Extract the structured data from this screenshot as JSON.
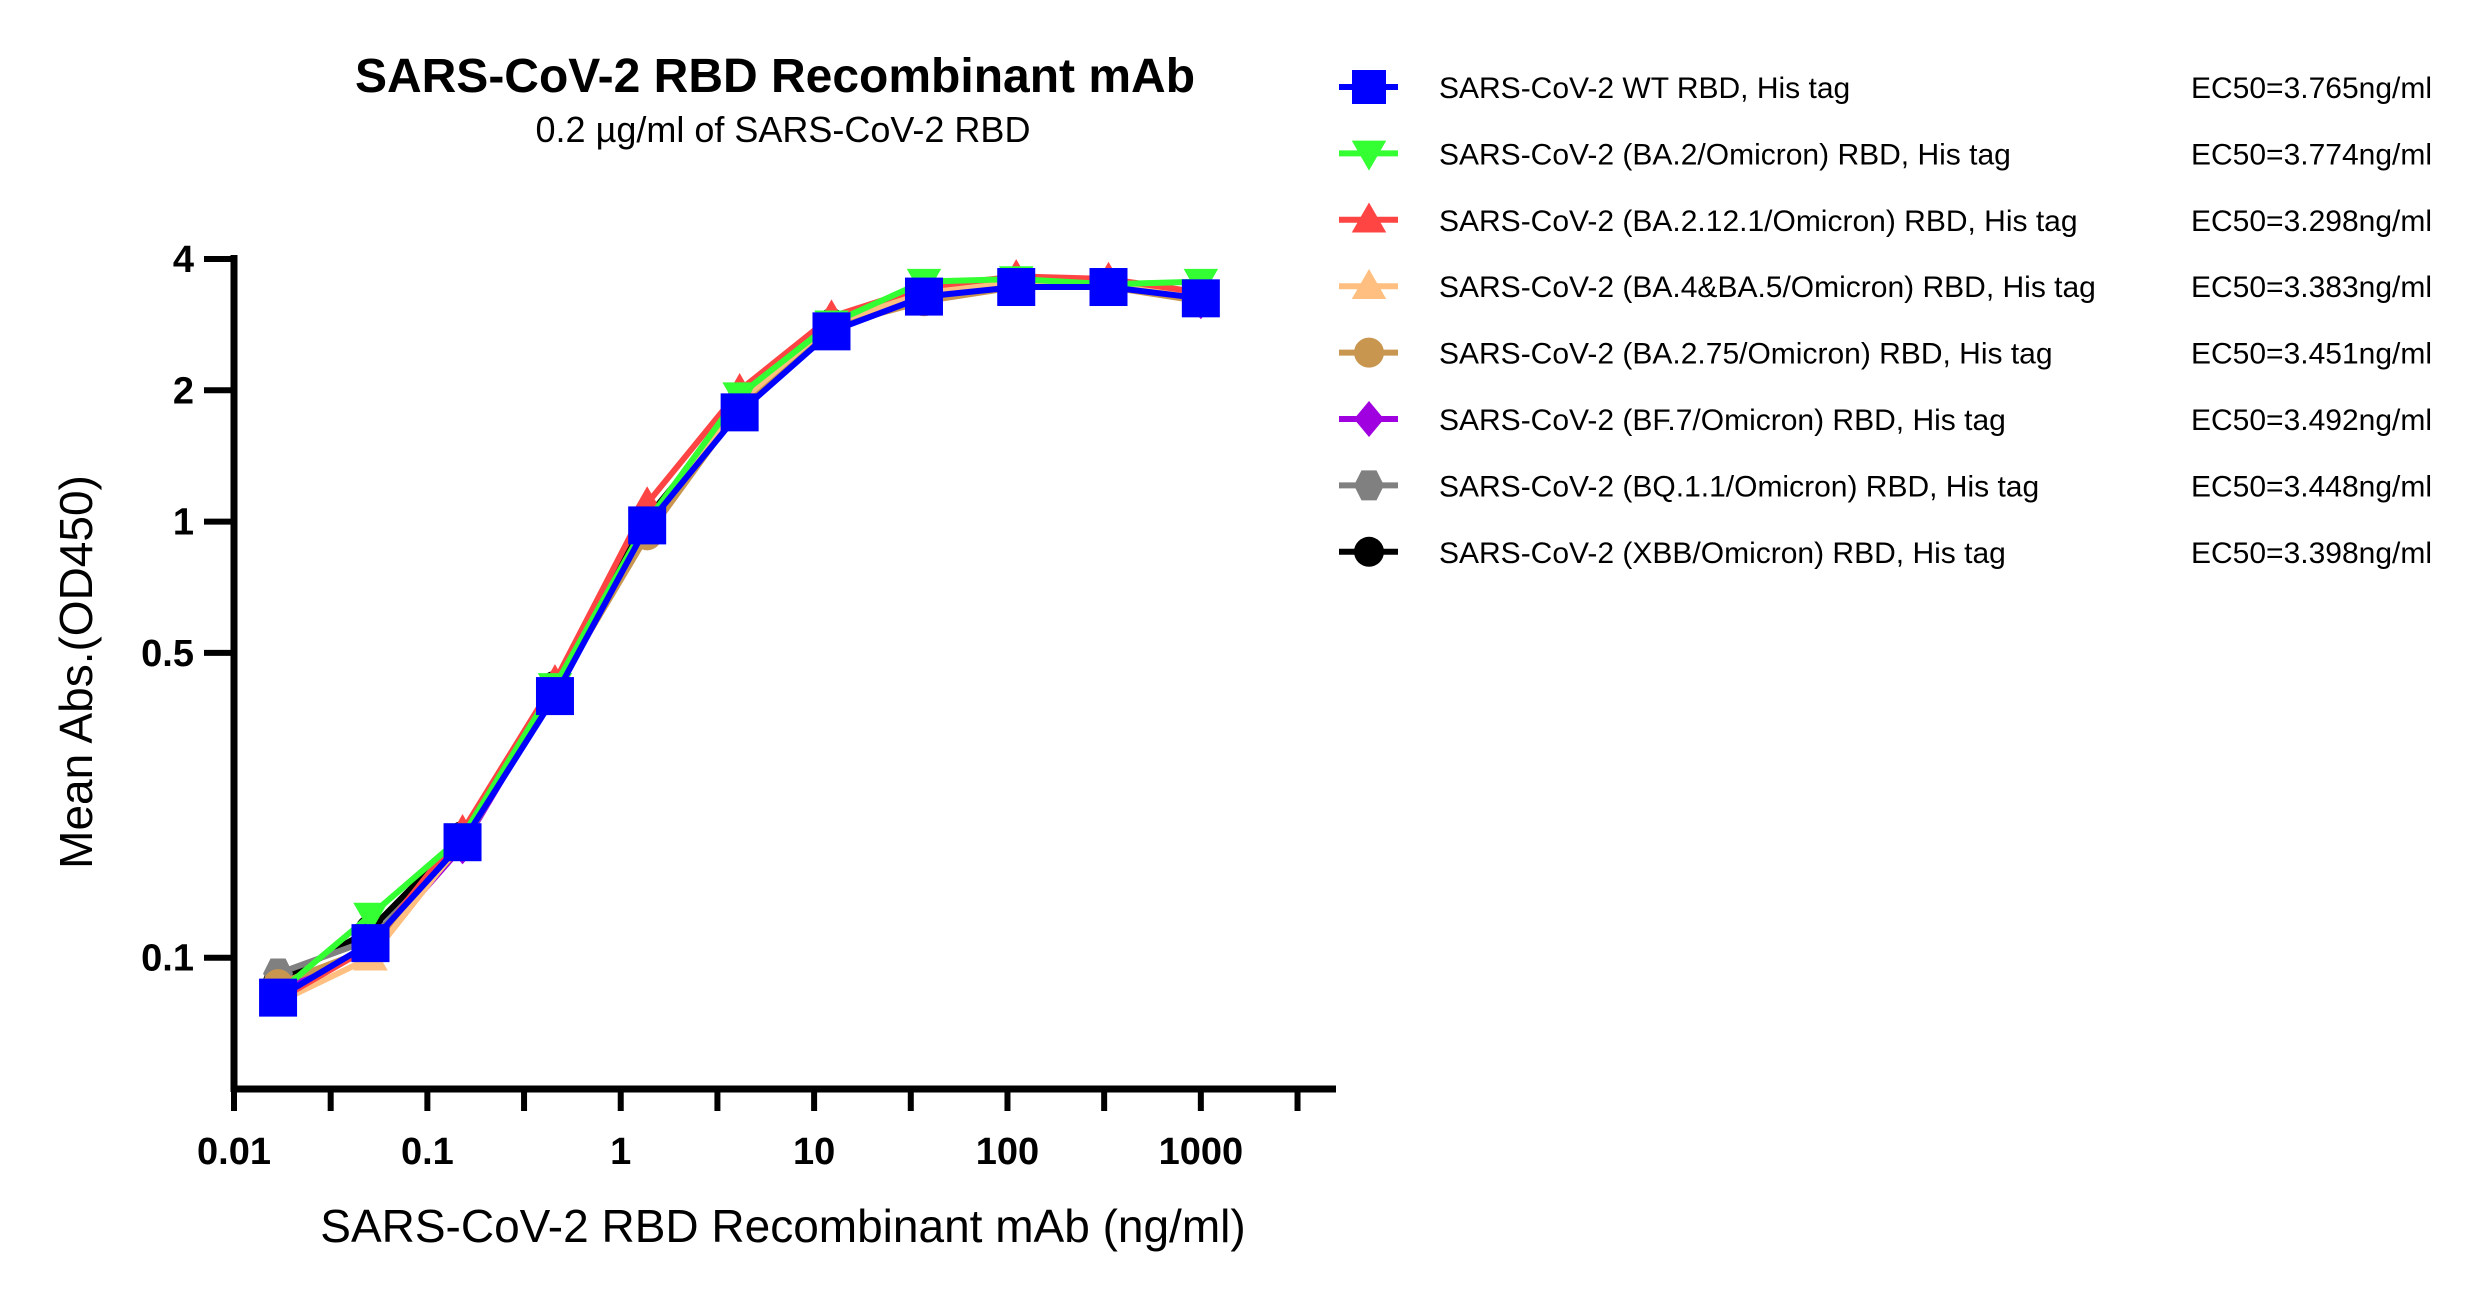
{
  "chart_data": {
    "type": "line",
    "title": "SARS-CoV-2 RBD Recombinant mAb",
    "subtitle": "0.2 µg/ml of SARS-CoV-2 RBD",
    "xlabel": "SARS-CoV-2 RBD Recombinant mAb (ng/ml)",
    "ylabel": "Mean Abs.(OD450)",
    "xscale": "log",
    "yscale": "log",
    "xlim": [
      0.01,
      5000
    ],
    "ylim": [
      0.05,
      4
    ],
    "xticks": [
      0.01,
      0.1,
      1,
      10,
      100,
      1000
    ],
    "xtick_labels": [
      "0.01",
      "0.1",
      "1",
      "10",
      "100",
      "1000"
    ],
    "yticks": [
      0.1,
      0.5,
      1,
      2,
      4
    ],
    "ytick_labels": [
      "0.1",
      "0.5",
      "1",
      "2",
      "4"
    ],
    "legend_position": "right",
    "x": [
      0.0169,
      0.0508,
      0.152,
      0.457,
      1.37,
      4.12,
      12.3,
      37.0,
      111,
      333,
      1000
    ],
    "series": [
      {
        "name": "SARS-CoV-2 (XBB/Omicron) RBD, His tag",
        "ec50": "EC50=3.398ng/ml",
        "color": "#000000",
        "marker": "circle",
        "values": [
          0.088,
          0.116,
          0.19,
          0.42,
          1.02,
          1.85,
          2.85,
          3.35,
          3.5,
          3.5,
          3.3
        ]
      },
      {
        "name": "SARS-CoV-2 (BQ.1.1/Omicron) RBD, His tag",
        "ec50": "EC50=3.448ng/ml",
        "color": "#808080",
        "marker": "hexagon",
        "values": [
          0.092,
          0.11,
          0.185,
          0.41,
          0.99,
          1.82,
          2.8,
          3.3,
          3.5,
          3.5,
          3.25
        ]
      },
      {
        "name": "SARS-CoV-2 (BF.7/Omicron) RBD, His tag",
        "ec50": "EC50=3.492ng/ml",
        "color": "#a000e0",
        "marker": "diamond",
        "values": [
          0.085,
          0.104,
          0.18,
          0.41,
          0.98,
          1.8,
          2.8,
          3.3,
          3.5,
          3.5,
          3.2
        ]
      },
      {
        "name": "SARS-CoV-2 (BA.2.75/Omicron) RBD, His tag",
        "ec50": "EC50=3.451ng/ml",
        "color": "#c8964f",
        "marker": "circle",
        "values": [
          0.087,
          0.105,
          0.182,
          0.41,
          0.93,
          1.82,
          2.8,
          3.2,
          3.45,
          3.45,
          3.2
        ]
      },
      {
        "name": "SARS-CoV-2 (BA.4&BA.5/Omicron) RBD, His tag",
        "ec50": "EC50=3.383ng/ml",
        "color": "#ffbf80",
        "marker": "triangle-up",
        "values": [
          0.079,
          0.1,
          0.185,
          0.42,
          1.0,
          1.88,
          2.85,
          3.35,
          3.55,
          3.5,
          3.3
        ]
      },
      {
        "name": "SARS-CoV-2 (BA.2.12.1/Omicron) RBD, His tag",
        "ec50": "EC50=3.298ng/ml",
        "color": "#ff4444",
        "marker": "triangle-up",
        "values": [
          0.08,
          0.106,
          0.195,
          0.43,
          1.1,
          2.0,
          2.95,
          3.45,
          3.65,
          3.6,
          3.35
        ]
      },
      {
        "name": "SARS-CoV-2 (BA.2/Omicron) RBD, His tag",
        "ec50": "EC50=3.774ng/ml",
        "color": "#33ff33",
        "marker": "triangle-down",
        "values": [
          0.083,
          0.125,
          0.19,
          0.42,
          1.0,
          1.95,
          2.85,
          3.55,
          3.6,
          3.5,
          3.55
        ]
      },
      {
        "name": "SARS-CoV-2 WT RBD, His tag",
        "ec50": "EC50=3.765ng/ml",
        "color": "#0000ff",
        "marker": "square",
        "values": [
          0.081,
          0.108,
          0.184,
          0.398,
          0.98,
          1.78,
          2.73,
          3.28,
          3.45,
          3.45,
          3.25
        ]
      }
    ],
    "legend_order": [
      7,
      6,
      5,
      4,
      3,
      2,
      1,
      0
    ]
  }
}
